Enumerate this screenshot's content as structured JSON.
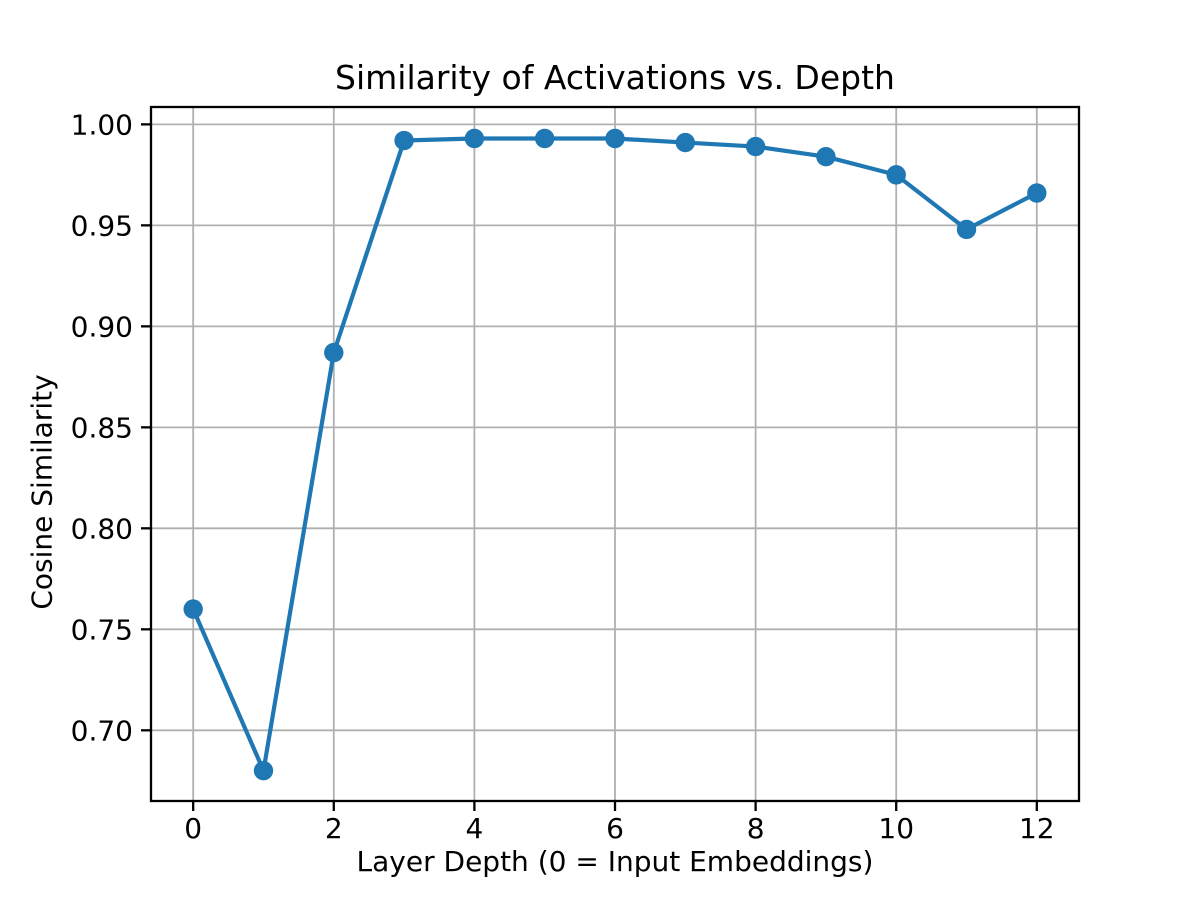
{
  "chart_data": {
    "type": "line",
    "title": "Similarity of Activations vs. Depth",
    "xlabel": "Layer Depth (0 = Input Embeddings)",
    "ylabel": "Cosine Similarity",
    "x": [
      0,
      1,
      2,
      3,
      4,
      5,
      6,
      7,
      8,
      9,
      10,
      11,
      12
    ],
    "y": [
      0.76,
      0.68,
      0.887,
      0.992,
      0.993,
      0.993,
      0.993,
      0.991,
      0.989,
      0.984,
      0.975,
      0.948,
      0.966
    ],
    "xtick_values": [
      0,
      2,
      4,
      6,
      8,
      10,
      12
    ],
    "xtick_labels": [
      "0",
      "2",
      "4",
      "6",
      "8",
      "10",
      "12"
    ],
    "ytick_values": [
      0.7,
      0.75,
      0.8,
      0.85,
      0.9,
      0.95,
      1.0
    ],
    "ytick_labels": [
      "0.70",
      "0.75",
      "0.80",
      "0.85",
      "0.90",
      "0.95",
      "1.00"
    ],
    "xlim": [
      -0.6,
      12.6
    ],
    "ylim": [
      0.665,
      1.0086
    ],
    "grid": true,
    "legend": false,
    "marker": "o",
    "line_color": "#1f77b4",
    "grid_color": "#b0b0b0",
    "spine_color": "#000000",
    "background": "#ffffff"
  }
}
